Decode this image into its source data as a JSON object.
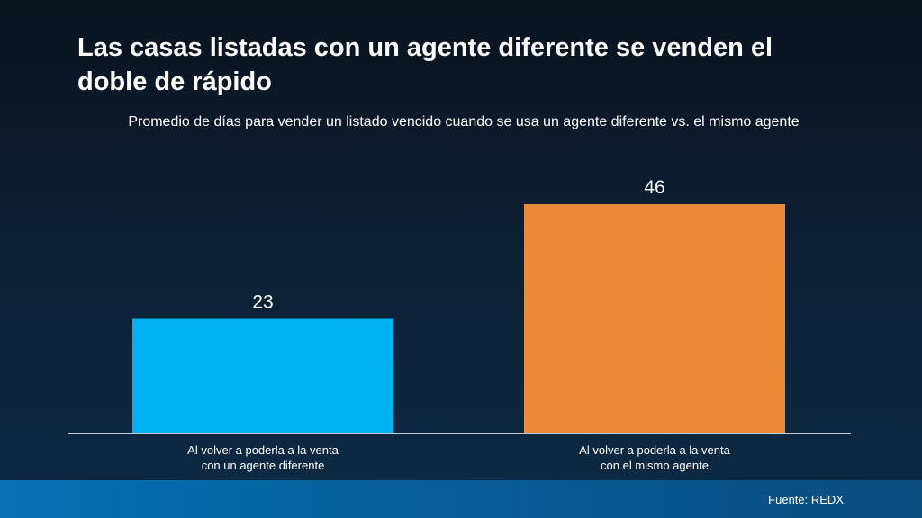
{
  "header": {
    "title": "Las casas listadas con un agente diferente se venden el doble de rápido",
    "subtitle": "Promedio de días para vender un listado vencido cuando se usa un agente diferente vs. el mismo agente"
  },
  "footer": {
    "source": "Fuente: REDX"
  },
  "chart_data": {
    "type": "bar",
    "title": "Las casas listadas con un agente diferente se venden el doble de rápido",
    "subtitle": "Promedio de días para vender un listado vencido cuando se usa un agente diferente vs. el mismo agente",
    "categories": [
      [
        "Al volver a poderla a la venta",
        "con un agente diferente"
      ],
      [
        "Al volver a poderla a la venta",
        "con el mismo agente"
      ]
    ],
    "values": [
      23,
      46
    ],
    "colors": [
      "#00b0f0",
      "#ed8a37"
    ],
    "data_labels": [
      "23",
      "46"
    ],
    "ylim": [
      0,
      46
    ],
    "grid": false,
    "legend": "none"
  }
}
